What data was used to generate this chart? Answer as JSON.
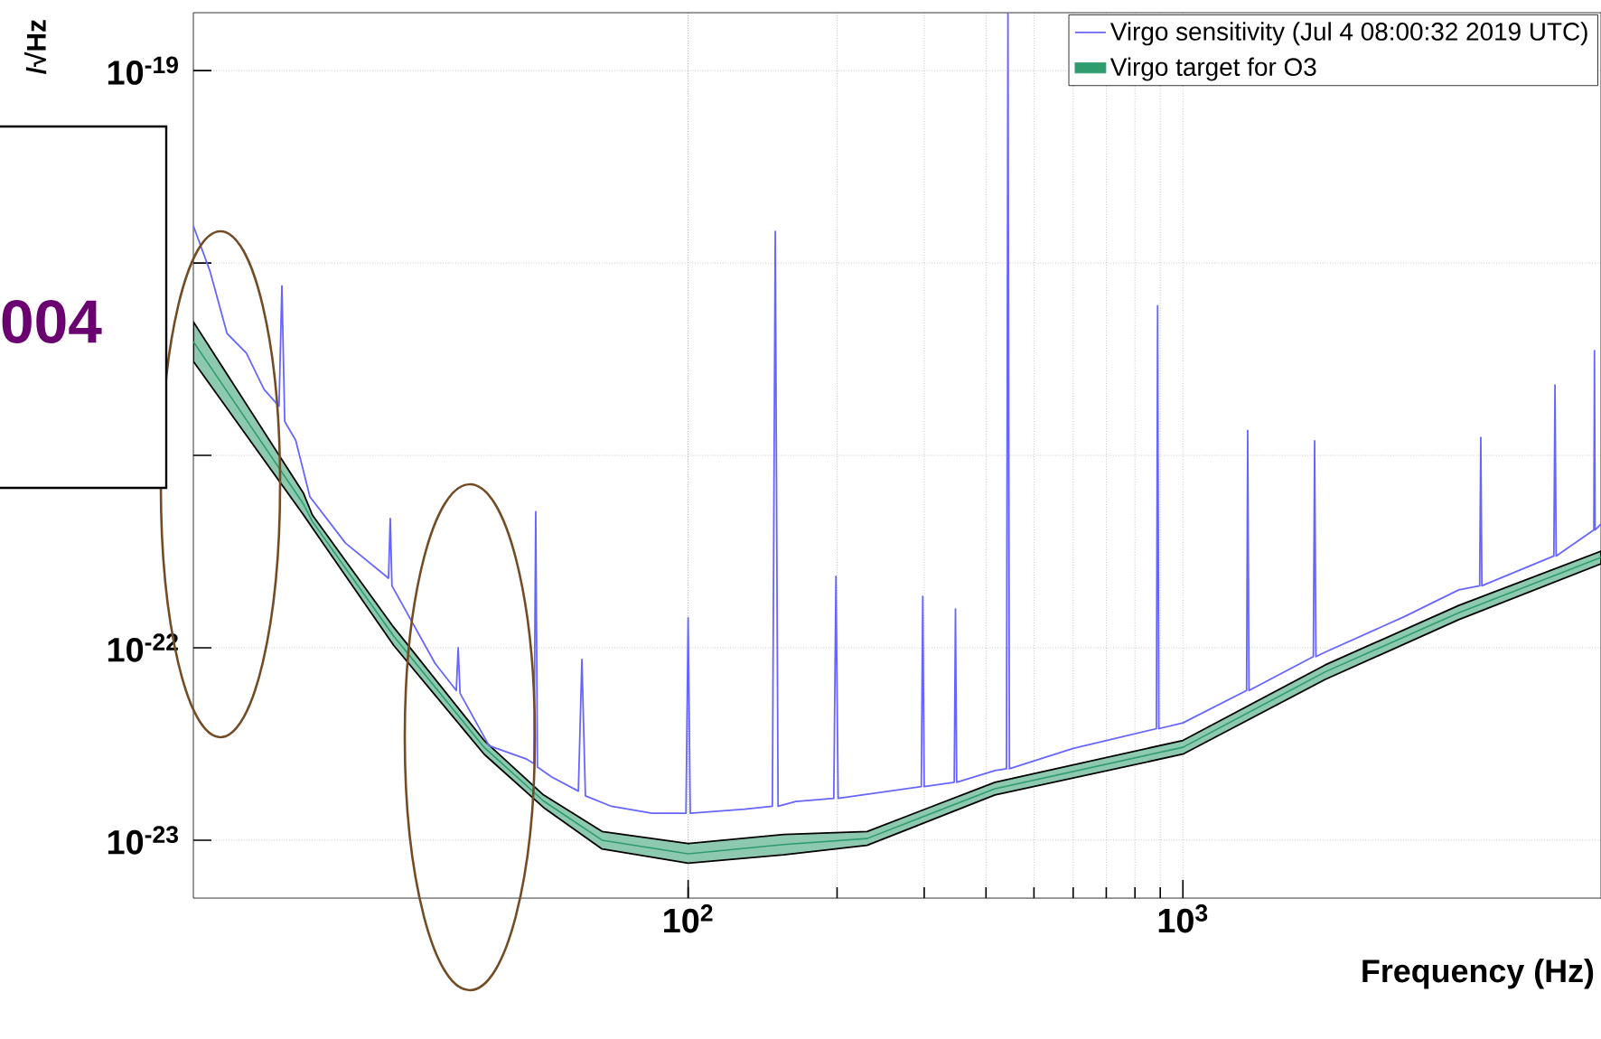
{
  "chart_data": {
    "type": "line",
    "xlabel": "Frequency (Hz)",
    "ylabel": "/√Hz",
    "log": "xy",
    "grid": true,
    "legend": "top right",
    "xlim": [
      10,
      7000
    ],
    "ylim": [
      5e-24,
      2e-19
    ],
    "xticks": [
      {
        "value": 100,
        "label": "10$^{2}$"
      },
      {
        "value": 1000,
        "label": "10$^{3}$"
      }
    ],
    "yticks": [
      {
        "value": 1e-19,
        "label": "10$^{-19}$"
      },
      {
        "value": 1e-20,
        "label": null
      },
      {
        "value": 1e-21,
        "label": null
      },
      {
        "value": 1e-22,
        "label": "10$^{-22}$"
      },
      {
        "value": 1e-23,
        "label": "10$^{-23}$"
      }
    ],
    "series": [
      {
        "name": "Virgo sensitivity (Jul  4 08:00:32 2019 UTC)",
        "color": "#6666ff",
        "x": [
          10,
          10.8,
          11.7,
          12.8,
          13.9,
          14.9,
          15.1,
          15.3,
          16.1,
          17.2,
          20.3,
          24.8,
          25.0,
          25.2,
          30.8,
          34.0,
          34.3,
          34.6,
          39.6,
          47,
          48.8,
          49.2,
          49.6,
          53,
          60,
          61,
          62,
          70,
          84.5,
          99,
          100,
          101,
          130,
          148,
          150,
          152,
          165,
          197,
          199,
          201,
          296,
          298,
          300,
          345,
          347,
          349,
          417,
          440,
          443,
          446,
          600,
          884,
          889,
          894,
          1000,
          1345,
          1352,
          1360,
          1835,
          1846,
          1857,
          1940,
          2800,
          3610,
          3980,
          4000,
          4020,
          5620,
          5650,
          5680,
          6770,
          6790,
          6810,
          7000
        ],
        "values": [
          1.56e-20,
          9.1e-21,
          4.3e-21,
          3.4e-21,
          2.2e-21,
          1.8e-21,
          7.6e-21,
          1.5e-21,
          1.2e-21,
          6.1e-22,
          3.5e-22,
          2.3e-22,
          4.7e-22,
          2.1e-22,
          8.3e-23,
          6e-23,
          1e-22,
          5.8e-23,
          3.1e-23,
          2.65e-23,
          2.5e-23,
          5.1e-22,
          2.4e-23,
          2.13e-23,
          1.8e-23,
          8.7e-23,
          1.7e-23,
          1.5e-23,
          1.38e-23,
          1.38e-23,
          1.43e-22,
          1.38e-23,
          1.45e-23,
          1.5e-23,
          1.46e-20,
          1.5e-23,
          1.59e-23,
          1.65e-23,
          2.35e-22,
          1.65e-23,
          1.9e-23,
          1.85e-22,
          1.9e-23,
          2e-23,
          1.59e-22,
          2e-23,
          2.3e-23,
          2.35e-23,
          2e-19,
          2.35e-23,
          3e-23,
          3.8e-23,
          6e-21,
          3.8e-23,
          4.07e-23,
          6e-23,
          1.35e-21,
          6e-23,
          9e-23,
          1.19e-21,
          9e-23,
          9.5e-23,
          1.45e-22,
          2e-22,
          2.1e-22,
          1.24e-21,
          2.1e-22,
          3e-22,
          2.32e-21,
          3e-22,
          4.1e-22,
          3.5e-21,
          4.1e-22,
          4.4e-22
        ]
      },
      {
        "name": "Virgo target for O3",
        "color": "#2e9c6e",
        "type": "line",
        "x": [
          10,
          16.7,
          17.4,
          25.4,
          38.7,
          51,
          67,
          100,
          156,
          230,
          417,
          1000,
          1940,
          3610,
          7000
        ],
        "values": [
          3.9e-21,
          5.58e-22,
          4.54e-22,
          1.15e-22,
          3.04e-23,
          1.6e-23,
          1e-23,
          8.5e-24,
          9.5e-24,
          1.02e-23,
          1.85e-23,
          3.04e-23,
          7.5e-23,
          1.52e-22,
          2.95e-22
        ],
        "upper": [
          4.95e-21,
          6.35e-22,
          4.9e-22,
          1.28e-22,
          3.3e-23,
          1.72e-23,
          1.11e-23,
          9.6e-24,
          1.07e-23,
          1.11e-23,
          2e-23,
          3.3e-23,
          8.15e-23,
          1.66e-22,
          3.18e-22
        ],
        "lower": [
          3.08e-21,
          4.9e-22,
          4.2e-22,
          1.03e-22,
          2.8e-23,
          1.48e-23,
          9e-24,
          7.6e-24,
          8.4e-24,
          9.4e-24,
          1.72e-23,
          2.8e-23,
          6.85e-23,
          1.4e-22,
          2.73e-22
        ]
      }
    ],
    "annotations": [
      "004"
    ]
  }
}
